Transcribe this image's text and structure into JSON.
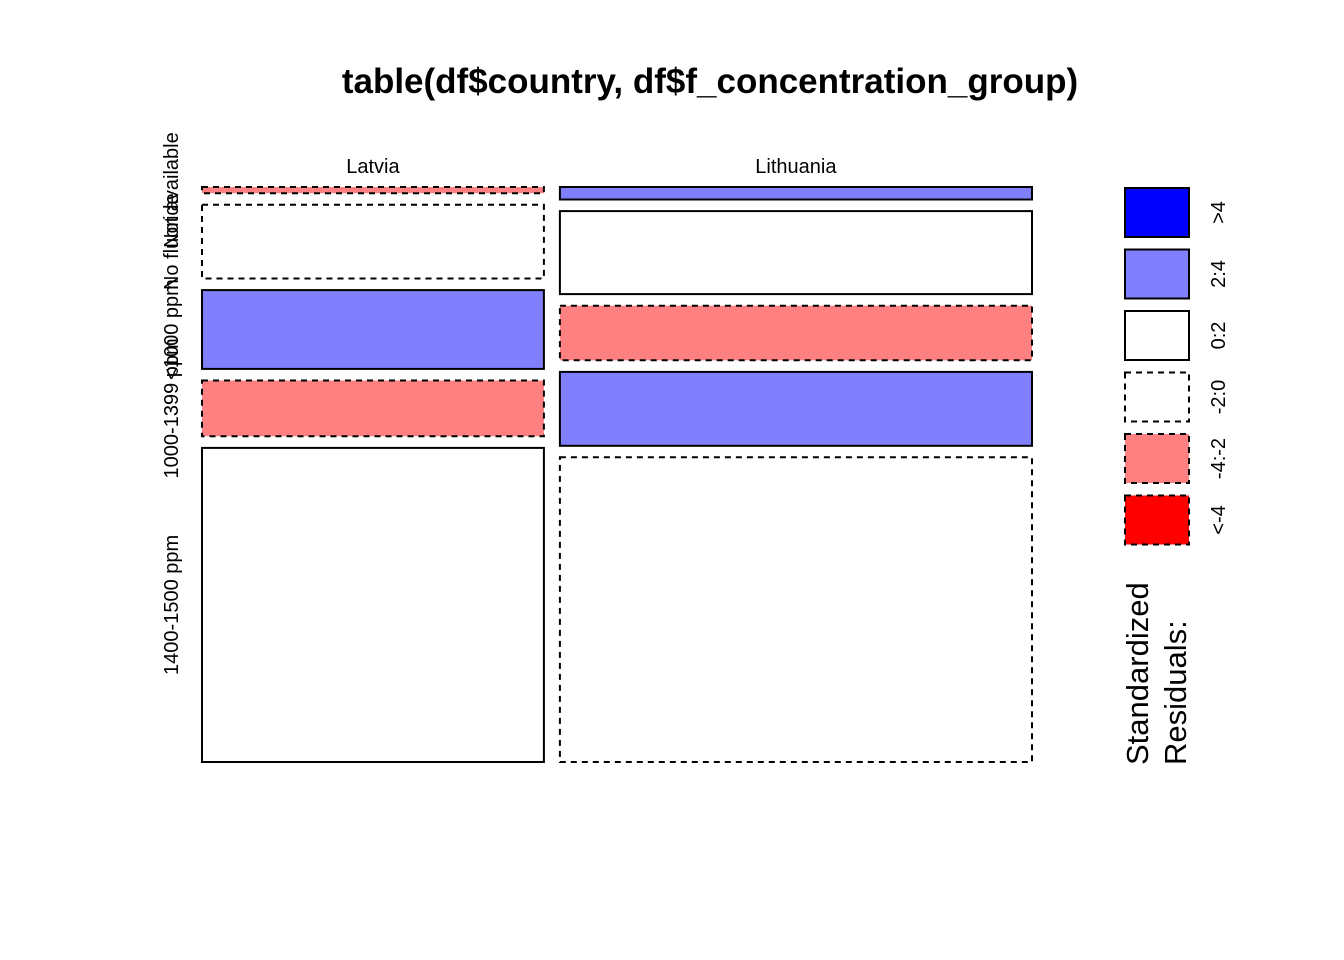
{
  "chart_data": {
    "type": "mosaic",
    "title": "table(df$country, df$f_concentration_group)",
    "columns": [
      "Latvia",
      "Lithuania"
    ],
    "rows": [
      "Not available",
      "No fluoride",
      "<1000 ppm",
      "1000-1399 ppm",
      "1400-1500 ppm"
    ],
    "column_totals": [
      42,
      58
    ],
    "proportions": {
      "Latvia": [
        0.011,
        0.131,
        0.14,
        0.099,
        0.558
      ],
      "Lithuania": [
        0.022,
        0.146,
        0.096,
        0.13,
        0.536
      ]
    },
    "residual_classes": {
      "Latvia": [
        "-4:-2",
        "-2:0",
        "2:4",
        "-4:-2",
        "0:2"
      ],
      "Lithuania": [
        "2:4",
        "0:2",
        "-4:-2",
        "2:4",
        "-2:0"
      ]
    },
    "legend": {
      "title_lines": [
        "Standardized",
        "Residuals:"
      ],
      "entries": [
        {
          "label": ">4",
          "fill": "#0000ff",
          "dashed": false
        },
        {
          "label": "2:4",
          "fill": "#8080ff",
          "dashed": false
        },
        {
          "label": "0:2",
          "fill": "#ffffff",
          "dashed": false
        },
        {
          "label": "-2:0",
          "fill": "#ffffff",
          "dashed": true
        },
        {
          "label": "-4:-2",
          "fill": "#ff8080",
          "dashed": true
        },
        {
          "label": "<-4",
          "fill": "#ff0000",
          "dashed": true
        }
      ]
    },
    "colors": {
      ">4": "#0000ff",
      "2:4": "#8080ff",
      "0:2": "#ffffff",
      "-2:0": "#ffffff",
      "-4:-2": "#ff8080",
      "<-4": "#ff0000"
    }
  }
}
